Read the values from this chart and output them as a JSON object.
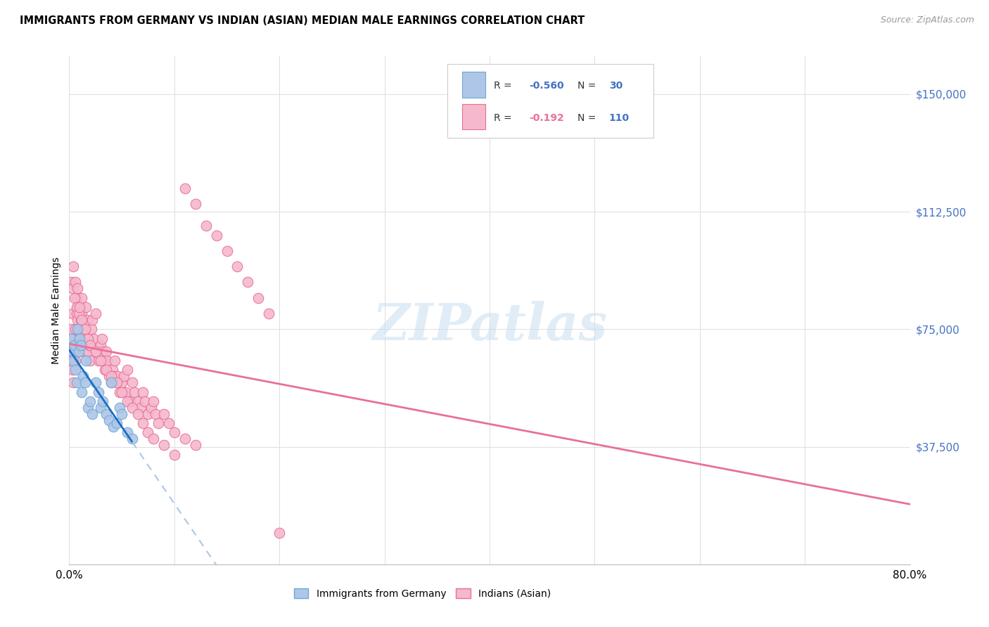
{
  "title": "IMMIGRANTS FROM GERMANY VS INDIAN (ASIAN) MEDIAN MALE EARNINGS CORRELATION CHART",
  "source": "Source: ZipAtlas.com",
  "ylabel": "Median Male Earnings",
  "ytick_labels": [
    "$37,500",
    "$75,000",
    "$112,500",
    "$150,000"
  ],
  "ytick_values": [
    37500,
    75000,
    112500,
    150000
  ],
  "ymin": 0,
  "ymax": 162000,
  "xmin": 0.0,
  "xmax": 0.8,
  "germany_color": "#aec6e8",
  "india_color": "#f5b8cc",
  "germany_edge": "#6fa8d4",
  "india_edge": "#e87098",
  "trend_germany_color": "#1a6fc4",
  "trend_india_color": "#e87098",
  "trend_germany_extend_color": "#aec6e8",
  "watermark": "ZIPatlas",
  "bottom_legend_germany": "Immigrants from Germany",
  "bottom_legend_india": "Indians (Asian)",
  "germany_x": [
    0.002,
    0.003,
    0.004,
    0.005,
    0.006,
    0.007,
    0.008,
    0.009,
    0.01,
    0.011,
    0.012,
    0.013,
    0.015,
    0.016,
    0.018,
    0.02,
    0.022,
    0.025,
    0.028,
    0.03,
    0.032,
    0.035,
    0.038,
    0.04,
    0.042,
    0.045,
    0.048,
    0.05,
    0.055,
    0.06
  ],
  "germany_y": [
    72000,
    68000,
    65000,
    70000,
    62000,
    58000,
    75000,
    68000,
    72000,
    70000,
    55000,
    60000,
    58000,
    65000,
    50000,
    52000,
    48000,
    58000,
    55000,
    50000,
    52000,
    48000,
    46000,
    58000,
    44000,
    45000,
    50000,
    48000,
    42000,
    40000
  ],
  "india_x": [
    0.001,
    0.002,
    0.002,
    0.003,
    0.003,
    0.004,
    0.004,
    0.005,
    0.005,
    0.006,
    0.006,
    0.007,
    0.007,
    0.008,
    0.008,
    0.009,
    0.009,
    0.01,
    0.01,
    0.011,
    0.012,
    0.012,
    0.013,
    0.014,
    0.015,
    0.015,
    0.016,
    0.017,
    0.018,
    0.019,
    0.02,
    0.021,
    0.022,
    0.023,
    0.025,
    0.026,
    0.028,
    0.03,
    0.031,
    0.032,
    0.033,
    0.034,
    0.035,
    0.036,
    0.038,
    0.04,
    0.041,
    0.042,
    0.043,
    0.045,
    0.046,
    0.048,
    0.05,
    0.052,
    0.054,
    0.055,
    0.058,
    0.06,
    0.062,
    0.065,
    0.068,
    0.07,
    0.072,
    0.075,
    0.078,
    0.08,
    0.082,
    0.085,
    0.09,
    0.095,
    0.1,
    0.11,
    0.12,
    0.002,
    0.003,
    0.004,
    0.005,
    0.006,
    0.007,
    0.008,
    0.009,
    0.01,
    0.012,
    0.015,
    0.018,
    0.02,
    0.025,
    0.03,
    0.035,
    0.04,
    0.045,
    0.05,
    0.055,
    0.06,
    0.065,
    0.07,
    0.075,
    0.08,
    0.09,
    0.1,
    0.11,
    0.12,
    0.13,
    0.14,
    0.15,
    0.16,
    0.17,
    0.18,
    0.19,
    0.2
  ],
  "india_y": [
    68000,
    65000,
    75000,
    80000,
    62000,
    58000,
    72000,
    70000,
    68000,
    75000,
    65000,
    85000,
    80000,
    78000,
    82000,
    75000,
    72000,
    68000,
    70000,
    78000,
    80000,
    85000,
    70000,
    68000,
    75000,
    72000,
    82000,
    78000,
    68000,
    70000,
    65000,
    75000,
    78000,
    72000,
    80000,
    68000,
    65000,
    70000,
    72000,
    68000,
    65000,
    62000,
    68000,
    65000,
    60000,
    58000,
    62000,
    60000,
    65000,
    58000,
    60000,
    55000,
    58000,
    60000,
    55000,
    62000,
    52000,
    58000,
    55000,
    52000,
    50000,
    55000,
    52000,
    48000,
    50000,
    52000,
    48000,
    45000,
    48000,
    45000,
    42000,
    40000,
    38000,
    90000,
    88000,
    95000,
    85000,
    90000,
    82000,
    88000,
    80000,
    82000,
    78000,
    75000,
    72000,
    70000,
    68000,
    65000,
    62000,
    60000,
    58000,
    55000,
    52000,
    50000,
    48000,
    45000,
    42000,
    40000,
    38000,
    35000,
    120000,
    115000,
    108000,
    105000,
    100000,
    95000,
    90000,
    85000,
    80000,
    10000
  ]
}
